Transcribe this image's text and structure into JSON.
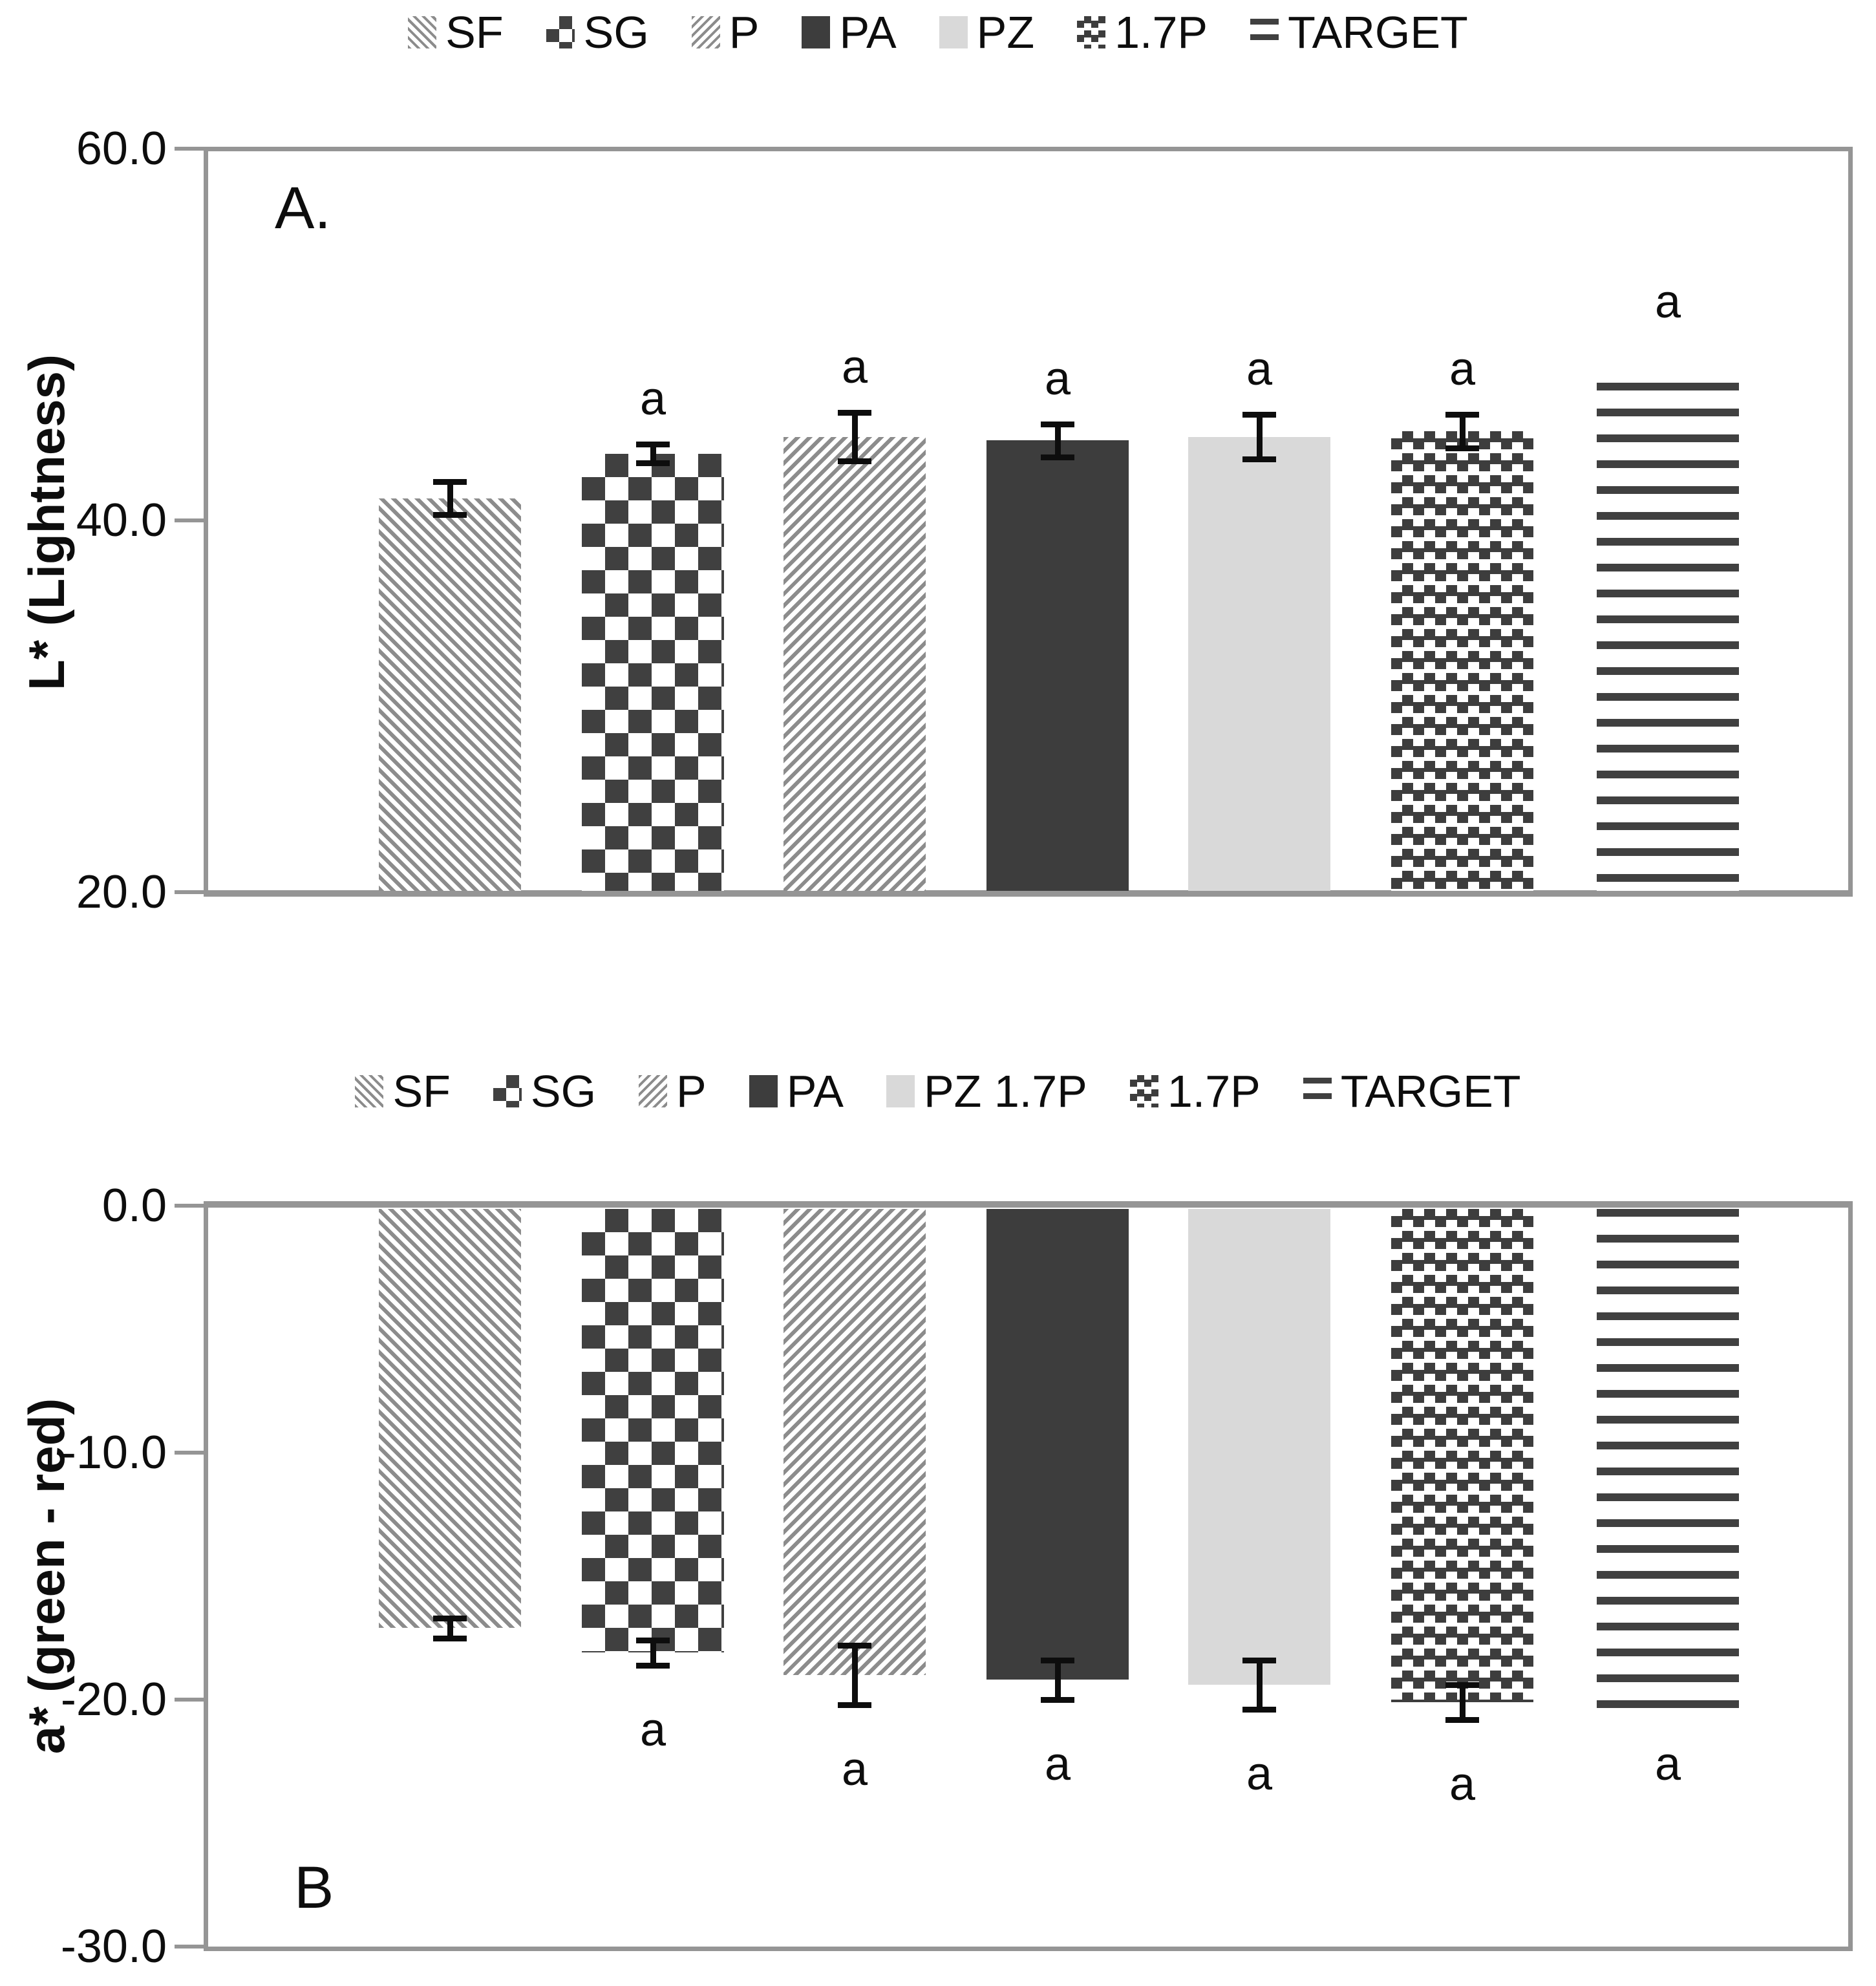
{
  "figure": {
    "description_colors": {
      "hatch_gray": "#8c8c8c",
      "dark_fill": "#3d3d3d",
      "checker_dark": "#404040",
      "light_fill": "#d9d9d9",
      "axis_gray": "#959595",
      "text_black": "#0d0d0d"
    }
  },
  "chart_data": [
    {
      "type": "bar",
      "panel_label": "A.",
      "ylabel": "L* (Lightness)",
      "ylim": [
        20.0,
        60.0
      ],
      "ytick_labels": [
        "60.0",
        "40.0",
        "20.0"
      ],
      "ytick_values": [
        60,
        40,
        20
      ],
      "grid": false,
      "legend_position": "top",
      "bar_baseline": 20,
      "categories": [
        "SF",
        "SG",
        "P",
        "PA",
        "PZ",
        "1.7P",
        "TARGET"
      ],
      "legend": [
        {
          "label": "SF",
          "pattern": "diagonal-down-hatch"
        },
        {
          "label": "SG",
          "pattern": "checkerboard"
        },
        {
          "label": "P",
          "pattern": "diagonal-up-hatch"
        },
        {
          "label": "PA",
          "pattern": "solid-dark"
        },
        {
          "label": "PZ",
          "pattern": "solid-light"
        },
        {
          "label": "1.7P",
          "pattern": "scattered-squares"
        },
        {
          "label": "TARGET",
          "pattern": "horizontal-lines"
        }
      ],
      "series": [
        {
          "name": "SF",
          "value": 41.2,
          "error": 0.9,
          "letter": null
        },
        {
          "name": "SG",
          "value": 43.6,
          "error": 0.5,
          "letter": "a"
        },
        {
          "name": "P",
          "value": 44.5,
          "error": 1.3,
          "letter": "a"
        },
        {
          "name": "PA",
          "value": 44.3,
          "error": 0.9,
          "letter": "a"
        },
        {
          "name": "PZ",
          "value": 44.5,
          "error": 1.2,
          "letter": "a"
        },
        {
          "name": "1.7P",
          "value": 44.8,
          "error": 0.9,
          "letter": "a"
        },
        {
          "name": "TARGET",
          "value": 47.4,
          "error": null,
          "letter": "a"
        }
      ]
    },
    {
      "type": "bar",
      "panel_label": "B",
      "ylabel": "a* (green - red)",
      "ylim": [
        -30.0,
        0.0
      ],
      "ytick_labels": [
        "0.0",
        "-10.0",
        "-20.0",
        "-30.0"
      ],
      "ytick_values": [
        0,
        -10,
        -20,
        -30
      ],
      "grid": false,
      "legend_position": "top",
      "bar_baseline": 0,
      "categories": [
        "SF",
        "SG",
        "P",
        "PA",
        "PZ",
        "1.7P",
        "TARGET"
      ],
      "legend": [
        {
          "label": "SF",
          "pattern": "diagonal-down-hatch"
        },
        {
          "label": "SG",
          "pattern": "checkerboard"
        },
        {
          "label": "P",
          "pattern": "diagonal-up-hatch"
        },
        {
          "label": "PA",
          "pattern": "solid-dark"
        },
        {
          "label": "PZ 1.7P",
          "pattern": "solid-light"
        },
        {
          "label": "1.7P",
          "pattern": "scattered-squares"
        },
        {
          "label": "TARGET",
          "pattern": "horizontal-lines"
        }
      ],
      "series": [
        {
          "name": "SF",
          "value": -17.1,
          "error": 0.4,
          "letter": null
        },
        {
          "name": "SG",
          "value": -18.1,
          "error": 0.5,
          "letter": "a"
        },
        {
          "name": "P",
          "value": -19.0,
          "error": 1.2,
          "letter": "a"
        },
        {
          "name": "PA",
          "value": -19.2,
          "error": 0.8,
          "letter": "a"
        },
        {
          "name": "PZ",
          "value": -19.4,
          "error": 1.0,
          "letter": "a"
        },
        {
          "name": "1.7P",
          "value": -20.1,
          "error": 0.7,
          "letter": "a"
        },
        {
          "name": "TARGET",
          "value": -20.4,
          "error": null,
          "letter": "a"
        }
      ]
    }
  ]
}
